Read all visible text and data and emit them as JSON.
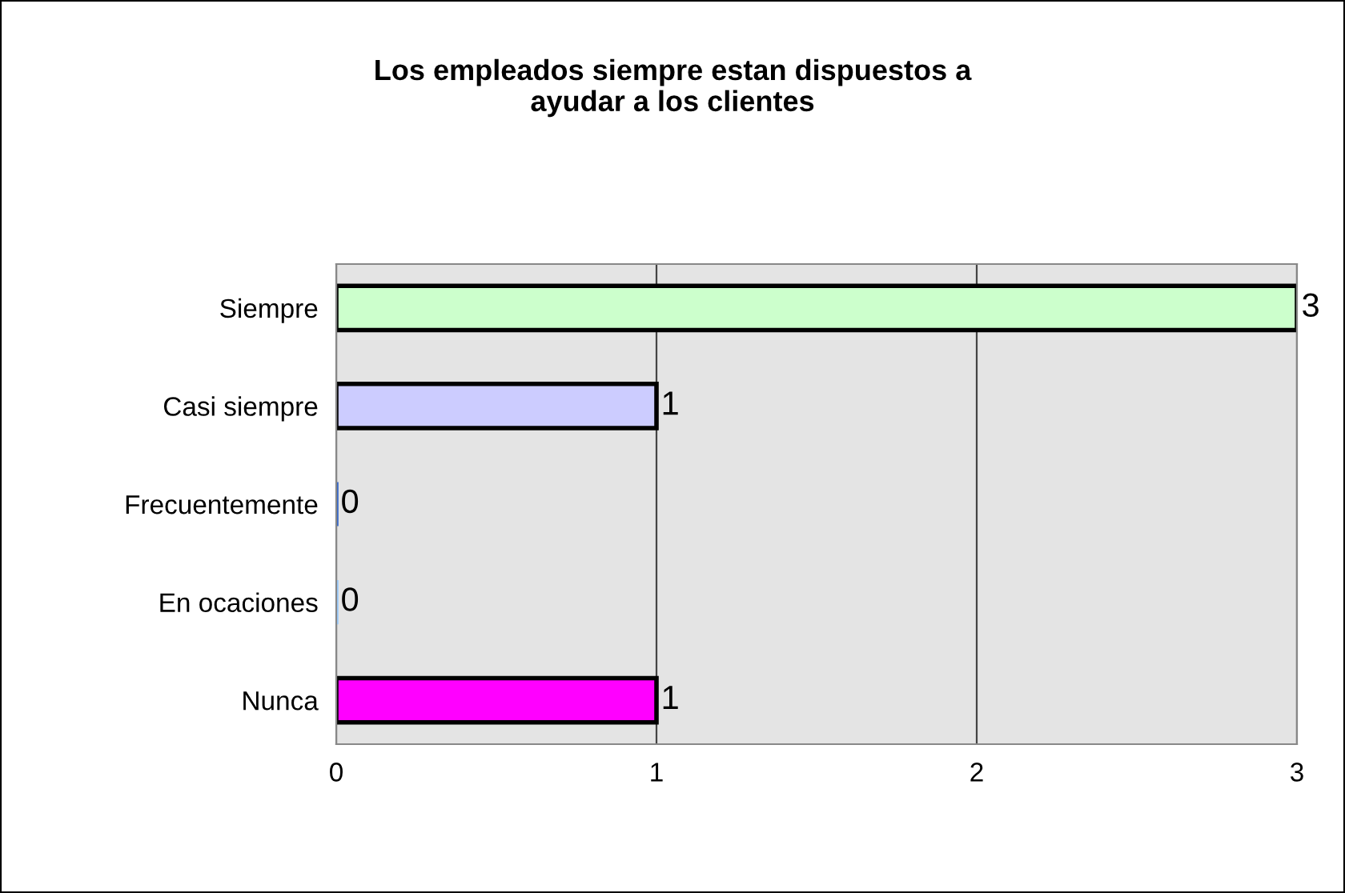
{
  "chart_data": {
    "type": "bar",
    "orientation": "horizontal",
    "title": "Los empleados siempre estan dispuestos a\nayudar a los clientes",
    "categories": [
      "Siempre",
      "Casi siempre",
      "Frecuentemente",
      "En ocaciones",
      "Nunca"
    ],
    "values": [
      3,
      1,
      0,
      0,
      1
    ],
    "colors": [
      "#ccffcc",
      "#ccccff",
      "#3366cc",
      "#99ccff",
      "#ff00ff"
    ],
    "xlim": [
      0,
      3
    ],
    "xticks": [
      0,
      1,
      2,
      3
    ],
    "grid": "x",
    "data_labels": true
  }
}
